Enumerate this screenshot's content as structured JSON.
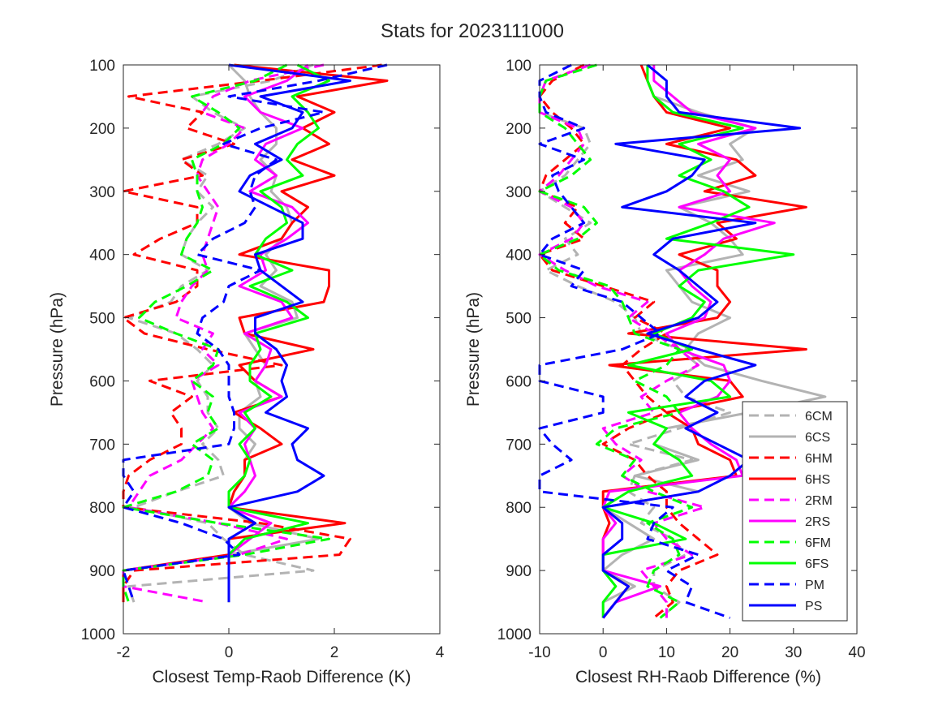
{
  "figure": {
    "title": "Stats for 2023111000"
  },
  "styles": {
    "6CM": {
      "color": "#b3b3b3",
      "dash": true
    },
    "6CS": {
      "color": "#b3b3b3",
      "dash": false
    },
    "6HM": {
      "color": "#ff0000",
      "dash": true
    },
    "6HS": {
      "color": "#ff0000",
      "dash": false
    },
    "2RM": {
      "color": "#ff00ff",
      "dash": true
    },
    "2RS": {
      "color": "#ff00ff",
      "dash": false
    },
    "6FM": {
      "color": "#00ff00",
      "dash": true
    },
    "6FS": {
      "color": "#00ff00",
      "dash": false
    },
    "PM": {
      "color": "#0000ff",
      "dash": true
    },
    "PS": {
      "color": "#0000ff",
      "dash": false
    }
  },
  "chart_data": [
    {
      "type": "line",
      "xlabel": "Closest Temp-Raob Difference (K)",
      "ylabel": "Pressure (hPa)",
      "xlim": [
        -2,
        4
      ],
      "ylim": [
        100,
        1000
      ],
      "y_reversed": true,
      "xticks": [
        -2,
        0,
        2,
        4
      ],
      "yticks": [
        100,
        200,
        300,
        400,
        500,
        600,
        700,
        800,
        900,
        1000
      ],
      "grid": false,
      "y": [
        100,
        125,
        150,
        175,
        200,
        225,
        250,
        275,
        300,
        325,
        350,
        375,
        400,
        425,
        450,
        475,
        500,
        525,
        550,
        575,
        600,
        625,
        650,
        675,
        700,
        725,
        750,
        775,
        800,
        825,
        850,
        875,
        900,
        925,
        950
      ],
      "series": [
        {
          "name": "6CM",
          "x": [
            1.6,
            0.8,
            -0.7,
            -0.3,
            0.3,
            -0.2,
            -0.9,
            -0.4,
            -0.6,
            -0.3,
            -0.6,
            -0.8,
            -0.9,
            -0.4,
            -0.9,
            -1.1,
            -1.9,
            -1.0,
            -0.6,
            -0.3,
            -0.6,
            -0.4,
            -0.4,
            -0.2,
            -0.5,
            -0.2,
            -0.1,
            -1.0,
            -1.8,
            -0.4,
            -0.1,
            0.3,
            1.6,
            -1.9,
            -1.8
          ]
        },
        {
          "name": "6CS",
          "x": [
            0.0,
            0.3,
            0.4,
            0.6,
            0.9,
            0.9,
            0.6,
            0.9,
            0.8,
            1.1,
            1.2,
            1.0,
            0.7,
            0.9,
            0.6,
            1.2,
            1.3,
            0.3,
            0.5,
            0.7,
            0.5,
            0.6,
            0.2,
            0.2,
            0.5,
            0.3,
            0.3,
            0.1,
            0.0,
            0.4,
            1.7,
            0.0,
            0.0,
            0.0,
            0.0
          ]
        },
        {
          "name": "6HM",
          "x": [
            2.9,
            0.6,
            -1.9,
            -0.5,
            -0.8,
            0.1,
            -0.9,
            -0.5,
            -2.0,
            -0.6,
            -0.6,
            -1.3,
            -1.8,
            -0.6,
            -0.6,
            -1.0,
            -2.0,
            -1.6,
            -0.4,
            1.0,
            -1.5,
            -0.7,
            -1.1,
            -0.9,
            -0.9,
            -1.5,
            -1.9,
            -2.0,
            -2.0,
            0.6,
            2.3,
            2.1,
            -1.8,
            -2.0,
            -2.0
          ]
        },
        {
          "name": "6HS",
          "x": [
            0.1,
            3.0,
            1.3,
            2.0,
            1.4,
            1.9,
            1.2,
            2.0,
            1.0,
            1.5,
            1.2,
            1.0,
            0.2,
            1.9,
            1.9,
            1.8,
            0.2,
            0.3,
            1.6,
            0.2,
            0.5,
            1.0,
            0.1,
            0.6,
            1.0,
            0.3,
            0.3,
            0.1,
            0.0,
            2.2,
            0.0,
            0.0,
            -2.0,
            -2.0,
            -2.0
          ]
        },
        {
          "name": "2RM",
          "x": [
            1.8,
            0.4,
            -0.3,
            -0.5,
            0.3,
            0.0,
            -0.5,
            -0.6,
            -0.4,
            -0.2,
            -0.3,
            -0.4,
            -0.5,
            -0.4,
            -0.7,
            -0.9,
            -1.0,
            -0.3,
            -0.5,
            -0.2,
            -0.7,
            -0.6,
            -0.5,
            -0.3,
            -0.6,
            -0.9,
            -1.5,
            -1.7,
            -1.9,
            -0.2,
            1.1,
            0.2,
            -2.0,
            -2.0,
            -0.4
          ]
        },
        {
          "name": "2RS",
          "x": [
            1.5,
            1.1,
            0.3,
            0.6,
            1.4,
            0.7,
            0.5,
            0.9,
            0.4,
            1.2,
            1.5,
            1.1,
            0.6,
            0.7,
            0.2,
            1.0,
            1.2,
            0.3,
            0.8,
            0.7,
            0.5,
            1.0,
            0.2,
            0.5,
            0.3,
            0.4,
            0.5,
            0.3,
            0.0,
            0.8,
            0.4,
            0.0,
            0.0,
            0.0,
            0.0
          ]
        },
        {
          "name": "6FM",
          "x": [
            1.1,
            0.5,
            -0.7,
            -0.2,
            0.2,
            -0.1,
            -0.7,
            -0.6,
            -0.6,
            -0.5,
            -0.6,
            -0.8,
            -0.9,
            -0.3,
            -0.8,
            -1.4,
            -1.7,
            -1.0,
            -0.2,
            -0.3,
            -0.7,
            -0.3,
            -0.4,
            -0.2,
            -0.7,
            -0.3,
            -0.4,
            -1.0,
            -2.0,
            -0.2,
            1.9,
            0.3,
            -2.0,
            -2.0,
            -1.9
          ]
        },
        {
          "name": "6FS",
          "x": [
            1.3,
            1.9,
            1.2,
            1.5,
            1.7,
            1.3,
            1.1,
            1.4,
            0.6,
            1.0,
            1.1,
            0.7,
            0.5,
            1.2,
            0.4,
            1.1,
            1.5,
            0.5,
            0.6,
            0.4,
            0.4,
            0.8,
            0.3,
            0.5,
            0.2,
            0.4,
            0.3,
            0.0,
            0.0,
            1.5,
            0.3,
            0.0,
            0.0,
            0.0,
            0.0
          ]
        },
        {
          "name": "PM",
          "x": [
            3.0,
            1.7,
            0.0,
            1.8,
            0.6,
            -0.1,
            0.9,
            0.5,
            0.4,
            0.5,
            0.3,
            -0.3,
            -0.6,
            0.6,
            0.0,
            -0.1,
            -0.5,
            -0.6,
            -0.2,
            0.0,
            0.0,
            0.0,
            0.1,
            0.1,
            0.0,
            -2.0,
            -2.0,
            -1.8,
            -2.0,
            -0.9,
            -0.1,
            0.2,
            -2.0,
            -1.9,
            -1.8
          ]
        },
        {
          "name": "PS",
          "x": [
            0.0,
            2.3,
            0.6,
            1.4,
            1.2,
            0.5,
            1.0,
            0.4,
            0.2,
            0.8,
            1.4,
            1.4,
            0.5,
            0.6,
            1.0,
            1.4,
            0.5,
            0.5,
            0.9,
            1.1,
            1.0,
            1.1,
            0.7,
            1.5,
            1.2,
            1.3,
            1.8,
            1.3,
            0.0,
            0.5,
            0.0,
            0.0,
            0.0,
            0.0,
            0.0
          ]
        }
      ]
    },
    {
      "type": "line",
      "xlabel": "Closest RH-Raob Difference (%)",
      "ylabel": "Pressure (hPa)",
      "xlim": [
        -10,
        40
      ],
      "ylim": [
        100,
        1000
      ],
      "y_reversed": true,
      "xticks": [
        -10,
        0,
        10,
        20,
        30,
        40
      ],
      "yticks": [
        100,
        200,
        300,
        400,
        500,
        600,
        700,
        800,
        900,
        1000
      ],
      "grid": false,
      "legend": {
        "location": "bottom-right",
        "entries": [
          "6CM",
          "6CS",
          "6HM",
          "6HS",
          "2RM",
          "2RS",
          "6FM",
          "6FS",
          "PM",
          "PS"
        ]
      },
      "y": [
        100,
        125,
        150,
        175,
        200,
        225,
        250,
        275,
        300,
        325,
        350,
        375,
        400,
        425,
        450,
        475,
        500,
        525,
        550,
        575,
        600,
        625,
        650,
        675,
        700,
        725,
        750,
        775,
        800,
        825,
        850,
        875,
        900,
        925,
        950,
        975
      ],
      "series": [
        {
          "name": "6CM",
          "x": [
            -1,
            -9,
            -10,
            -10,
            -3,
            -2,
            -4,
            -6,
            -10,
            -6,
            -2,
            -6,
            -4,
            -9,
            -4,
            2,
            5,
            6,
            12,
            15,
            11,
            13,
            20,
            12,
            4,
            14,
            5,
            4,
            8,
            6,
            11,
            13,
            8,
            8,
            12,
            9
          ]
        },
        {
          "name": "6CS",
          "x": [
            7,
            7,
            8,
            15,
            24,
            20,
            22,
            15,
            23,
            12,
            17,
            20,
            22,
            10,
            12,
            14,
            20,
            15,
            13,
            16,
            25,
            35,
            23,
            10,
            8,
            15,
            5,
            15,
            0,
            4,
            8,
            3,
            0,
            5,
            0,
            0
          ]
        },
        {
          "name": "6HM",
          "x": [
            -3,
            -8,
            -10,
            -8,
            -5,
            -3,
            -6,
            -9,
            -10,
            -4,
            -6,
            -3,
            -10,
            -8,
            0,
            8,
            5,
            10,
            6,
            3,
            5,
            7,
            10,
            4,
            0,
            5,
            7,
            10,
            10,
            12,
            15,
            18,
            12,
            10,
            11,
            8
          ]
        },
        {
          "name": "6HS",
          "x": [
            6,
            7,
            8,
            10,
            20,
            10,
            21,
            24,
            16,
            32,
            18,
            21,
            12,
            18,
            18,
            20,
            18,
            4,
            32,
            1,
            20,
            22,
            10,
            14,
            15,
            20,
            21,
            0,
            0,
            1,
            0,
            0,
            0,
            4,
            2,
            0
          ]
        },
        {
          "name": "2RM",
          "x": [
            -2,
            -9,
            -10,
            -10,
            -4,
            -3,
            -5,
            -7,
            -10,
            -5,
            -3,
            -5,
            -10,
            -6,
            -1,
            7,
            4,
            8,
            12,
            15,
            10,
            6,
            8,
            0,
            2,
            6,
            3,
            7,
            16,
            8,
            10,
            14,
            6,
            8,
            10,
            10
          ]
        },
        {
          "name": "2RS",
          "x": [
            8,
            8,
            11,
            14,
            24,
            15,
            20,
            18,
            20,
            12,
            27,
            19,
            16,
            12,
            14,
            17,
            16,
            10,
            12,
            19,
            20,
            18,
            12,
            14,
            17,
            21,
            22,
            1,
            0,
            2,
            0,
            0,
            0,
            9,
            2,
            0
          ]
        },
        {
          "name": "6FM",
          "x": [
            -1,
            -9,
            -10,
            -10,
            -6,
            -4,
            -2,
            -5,
            -10,
            -3,
            -1,
            -4,
            -10,
            -7,
            1,
            3,
            4,
            5,
            12,
            10,
            5,
            10,
            12,
            2,
            -1,
            5,
            3,
            8,
            14,
            7,
            11,
            12,
            8,
            7,
            12,
            9
          ]
        },
        {
          "name": "6FS",
          "x": [
            7,
            7,
            8,
            11,
            22,
            12,
            17,
            12,
            19,
            23,
            17,
            10,
            30,
            15,
            12,
            16,
            14,
            8,
            14,
            4,
            17,
            20,
            4,
            10,
            8,
            12,
            14,
            4,
            0,
            8,
            13,
            0,
            0,
            2,
            0,
            0
          ]
        },
        {
          "name": "PM",
          "x": [
            -5,
            -10,
            -10,
            -9,
            -3,
            -10,
            -3,
            -8,
            -7,
            -5,
            -3,
            -8,
            -10,
            -3,
            -5,
            3,
            6,
            9,
            3,
            -10,
            -10,
            0,
            0,
            -10,
            -8,
            -5,
            -10,
            -10,
            11,
            8,
            7,
            15,
            10,
            14,
            13,
            20
          ]
        },
        {
          "name": "PS",
          "x": [
            7,
            10,
            10,
            12,
            31,
            2,
            16,
            14,
            10,
            3,
            24,
            11,
            8,
            12,
            15,
            18,
            15,
            7,
            15,
            24,
            16,
            13,
            18,
            13,
            18,
            23,
            20,
            15,
            0,
            3,
            3,
            0,
            0,
            4,
            2,
            0
          ]
        }
      ]
    }
  ]
}
